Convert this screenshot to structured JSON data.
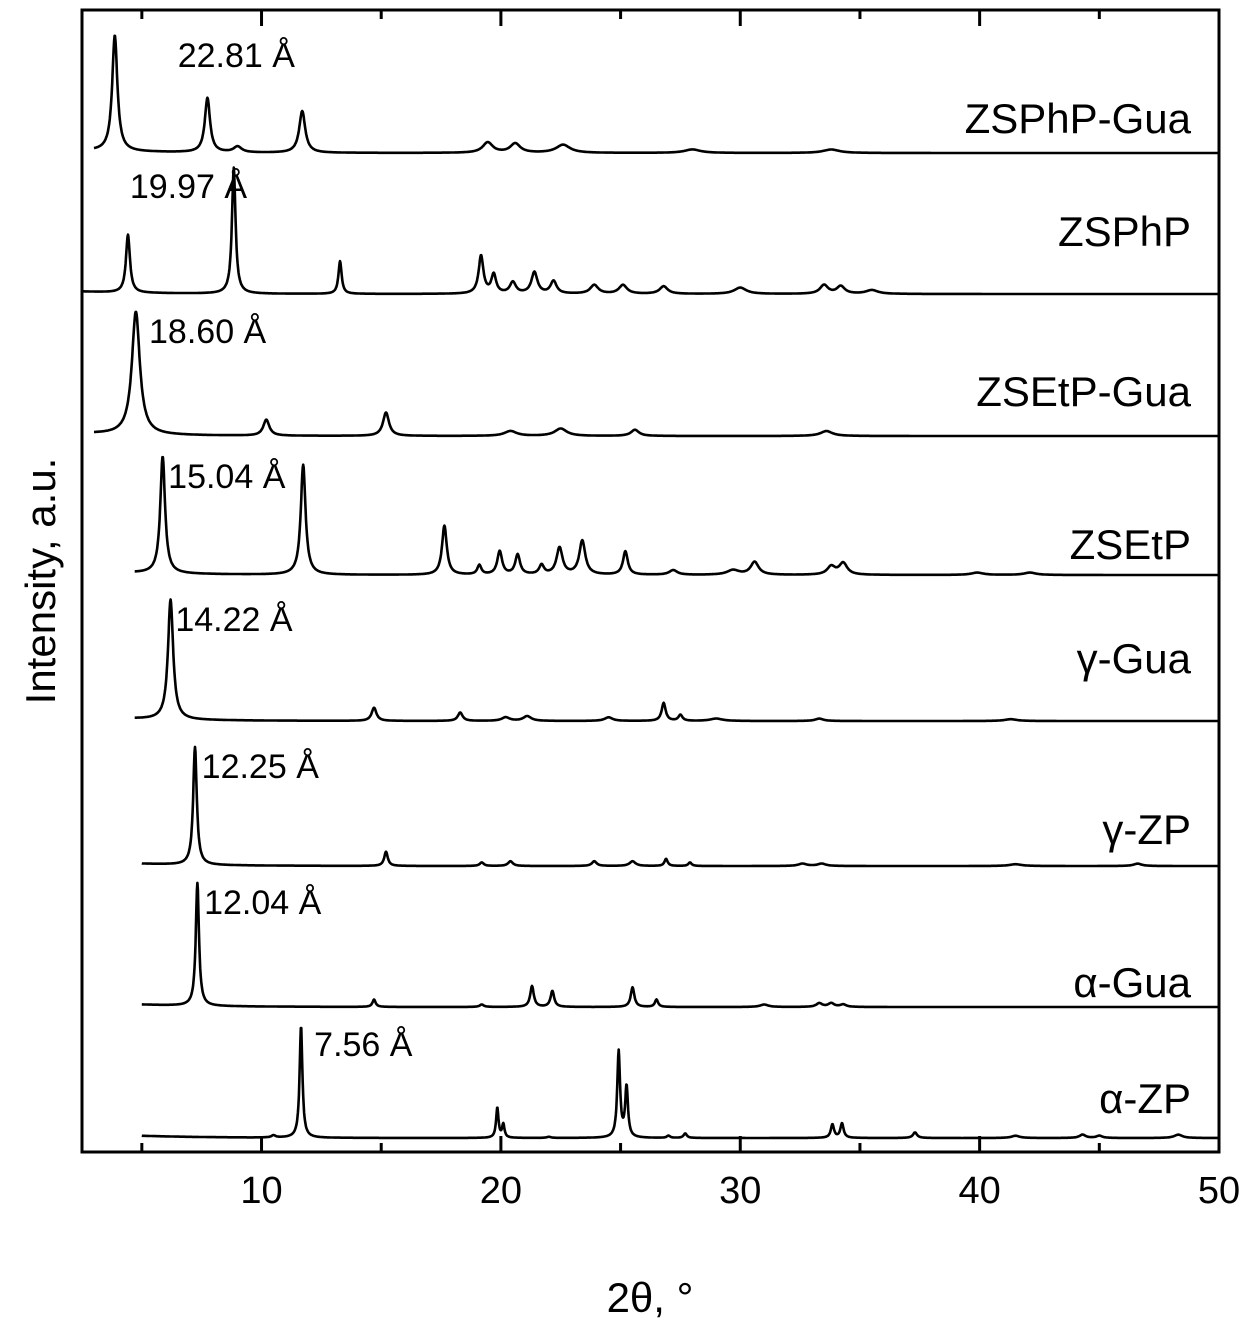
{
  "chart_data": {
    "type": "line",
    "xlabel": "2θ, °",
    "ylabel": "Intensity, a.u.",
    "xlim": [
      2.5,
      50
    ],
    "xticks": [
      10,
      20,
      30,
      40,
      50
    ],
    "grid": false,
    "legend": "none",
    "colors": {
      "line": "#000000",
      "background": "#ffffff"
    },
    "series": [
      {
        "name": "ZSPhP-Gua",
        "x_start": 3.0,
        "annotation": "22.81 Å",
        "annotation_x": 6.5,
        "peaks": [
          [
            3.87,
            1.0,
            0.13
          ],
          [
            7.74,
            0.47,
            0.13
          ],
          [
            9.0,
            0.05,
            0.2
          ],
          [
            11.7,
            0.36,
            0.15
          ],
          [
            19.45,
            0.09,
            0.25
          ],
          [
            20.6,
            0.08,
            0.25
          ],
          [
            22.6,
            0.07,
            0.35
          ],
          [
            28.0,
            0.03,
            0.4
          ],
          [
            33.8,
            0.03,
            0.4
          ]
        ]
      },
      {
        "name": "ZSPhP",
        "x_start": 2.5,
        "annotation": "19.97 Å",
        "annotation_x": 4.5,
        "peaks": [
          [
            4.42,
            0.46,
            0.1
          ],
          [
            8.84,
            1.0,
            0.09
          ],
          [
            13.28,
            0.26,
            0.08
          ],
          [
            19.17,
            0.3,
            0.12
          ],
          [
            19.7,
            0.15,
            0.12
          ],
          [
            20.5,
            0.09,
            0.15
          ],
          [
            21.4,
            0.17,
            0.15
          ],
          [
            22.2,
            0.1,
            0.15
          ],
          [
            23.9,
            0.07,
            0.2
          ],
          [
            25.1,
            0.07,
            0.2
          ],
          [
            26.8,
            0.06,
            0.2
          ],
          [
            30.0,
            0.05,
            0.3
          ],
          [
            33.5,
            0.07,
            0.2
          ],
          [
            34.2,
            0.06,
            0.2
          ],
          [
            35.5,
            0.03,
            0.3
          ]
        ]
      },
      {
        "name": "ZSEtP-Gua",
        "x_start": 3.0,
        "annotation": "18.60 Å",
        "annotation_x": 5.3,
        "peaks": [
          [
            4.75,
            1.0,
            0.2
          ],
          [
            10.2,
            0.13,
            0.15
          ],
          [
            15.2,
            0.19,
            0.15
          ],
          [
            20.4,
            0.04,
            0.3
          ],
          [
            22.5,
            0.06,
            0.3
          ],
          [
            25.6,
            0.05,
            0.2
          ],
          [
            33.6,
            0.04,
            0.3
          ]
        ]
      },
      {
        "name": "ZSEtP",
        "x_start": 4.7,
        "annotation": "15.04 Å",
        "annotation_x": 6.1,
        "peaks": [
          [
            5.87,
            1.0,
            0.12
          ],
          [
            11.74,
            0.94,
            0.12
          ],
          [
            17.64,
            0.42,
            0.12
          ],
          [
            19.1,
            0.08,
            0.1
          ],
          [
            19.95,
            0.2,
            0.12
          ],
          [
            20.7,
            0.17,
            0.12
          ],
          [
            21.7,
            0.08,
            0.12
          ],
          [
            22.45,
            0.23,
            0.15
          ],
          [
            23.4,
            0.29,
            0.15
          ],
          [
            25.2,
            0.2,
            0.12
          ],
          [
            27.2,
            0.04,
            0.2
          ],
          [
            29.7,
            0.04,
            0.3
          ],
          [
            30.6,
            0.11,
            0.2
          ],
          [
            33.8,
            0.07,
            0.2
          ],
          [
            34.3,
            0.1,
            0.2
          ],
          [
            39.9,
            0.02,
            0.3
          ],
          [
            42.1,
            0.02,
            0.3
          ]
        ]
      },
      {
        "name": "γ-Gua",
        "x_start": 4.7,
        "annotation": "14.22 Å",
        "annotation_x": 6.4,
        "peaks": [
          [
            6.2,
            1.0,
            0.13
          ],
          [
            14.7,
            0.11,
            0.12
          ],
          [
            18.3,
            0.07,
            0.12
          ],
          [
            20.2,
            0.03,
            0.2
          ],
          [
            21.1,
            0.04,
            0.2
          ],
          [
            24.5,
            0.03,
            0.2
          ],
          [
            26.8,
            0.15,
            0.1
          ],
          [
            27.5,
            0.05,
            0.1
          ],
          [
            29.0,
            0.02,
            0.3
          ],
          [
            33.3,
            0.02,
            0.2
          ],
          [
            41.3,
            0.015,
            0.3
          ]
        ]
      },
      {
        "name": "γ-ZP",
        "x_start": 5.0,
        "annotation": "12.25 Å",
        "annotation_x": 7.5,
        "peaks": [
          [
            7.22,
            1.0,
            0.09
          ],
          [
            15.2,
            0.12,
            0.09
          ],
          [
            19.2,
            0.03,
            0.1
          ],
          [
            20.4,
            0.04,
            0.12
          ],
          [
            23.9,
            0.04,
            0.12
          ],
          [
            25.5,
            0.04,
            0.15
          ],
          [
            26.9,
            0.06,
            0.08
          ],
          [
            27.9,
            0.03,
            0.08
          ],
          [
            32.6,
            0.02,
            0.2
          ],
          [
            33.4,
            0.02,
            0.2
          ],
          [
            41.5,
            0.015,
            0.3
          ],
          [
            46.6,
            0.02,
            0.2
          ]
        ]
      },
      {
        "name": "α-Gua",
        "x_start": 5.0,
        "annotation": "12.04 Å",
        "annotation_x": 7.6,
        "peaks": [
          [
            7.32,
            1.0,
            0.08
          ],
          [
            14.7,
            0.06,
            0.08
          ],
          [
            19.2,
            0.02,
            0.1
          ],
          [
            21.3,
            0.17,
            0.09
          ],
          [
            22.15,
            0.13,
            0.09
          ],
          [
            25.5,
            0.16,
            0.09
          ],
          [
            26.5,
            0.06,
            0.08
          ],
          [
            31.0,
            0.02,
            0.2
          ],
          [
            33.3,
            0.03,
            0.15
          ],
          [
            33.8,
            0.03,
            0.15
          ],
          [
            34.3,
            0.02,
            0.15
          ]
        ]
      },
      {
        "name": "α-ZP",
        "x_start": 5.0,
        "annotation": "7.56 Å",
        "annotation_x": 12.2,
        "peaks": [
          [
            10.5,
            0.02,
            0.1
          ],
          [
            11.65,
            1.0,
            0.07
          ],
          [
            19.85,
            0.27,
            0.06
          ],
          [
            20.1,
            0.12,
            0.06
          ],
          [
            22.0,
            0.01,
            0.1
          ],
          [
            24.92,
            0.77,
            0.07
          ],
          [
            25.25,
            0.45,
            0.07
          ],
          [
            27.0,
            0.02,
            0.08
          ],
          [
            27.7,
            0.04,
            0.08
          ],
          [
            33.85,
            0.12,
            0.08
          ],
          [
            34.25,
            0.13,
            0.08
          ],
          [
            37.3,
            0.05,
            0.1
          ],
          [
            41.5,
            0.02,
            0.2
          ],
          [
            44.3,
            0.03,
            0.15
          ],
          [
            45.0,
            0.02,
            0.15
          ],
          [
            48.3,
            0.03,
            0.2
          ]
        ]
      }
    ]
  }
}
